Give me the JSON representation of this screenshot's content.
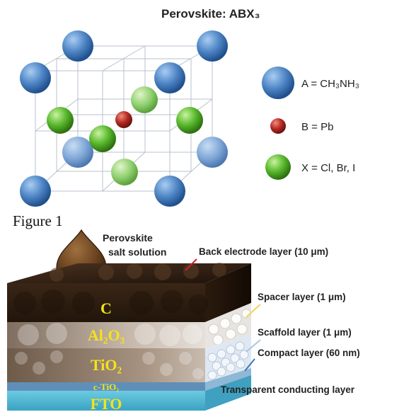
{
  "figure1": {
    "title": "Perovskite: ABX₃",
    "legend": [
      {
        "key": "A",
        "label": "A = CH₃NH₃",
        "color": "#4f86c6"
      },
      {
        "key": "B",
        "label": "B = Pb",
        "color": "#b52a22"
      },
      {
        "key": "X",
        "label": "X = Cl, Br, I",
        "color": "#58b82c"
      }
    ],
    "caption": "Figure 1"
  },
  "figure2": {
    "drop_label_line1": "Perovskite",
    "drop_label_line2": "salt solution",
    "layer_names": {
      "carbon": "C",
      "alumina": "Al₂O₃",
      "titania": "TiO₂",
      "compact": "c-TiO₂",
      "fto": "FTO"
    },
    "callouts": {
      "back_electrode": "Back electrode layer (10 μm)",
      "spacer": "Spacer layer (1 μm)",
      "scaffold": "Scaffold layer (1 μm)",
      "compact": "Compact layer (60 nm)",
      "transparent": "Transparent conducting layer"
    },
    "colors": {
      "carbon": "#2a1a0c",
      "alumina": "#b8a89a",
      "titania": "#9a8674",
      "compact": "#5a9bc0",
      "fto": "#4fb6d2",
      "label_yellow": "#f5e31a",
      "callout_red": "#d42020",
      "callout_yellow": "#f2d25a",
      "callout_lightblue": "#a8c6e0",
      "callout_blue": "#3f78b5"
    }
  }
}
